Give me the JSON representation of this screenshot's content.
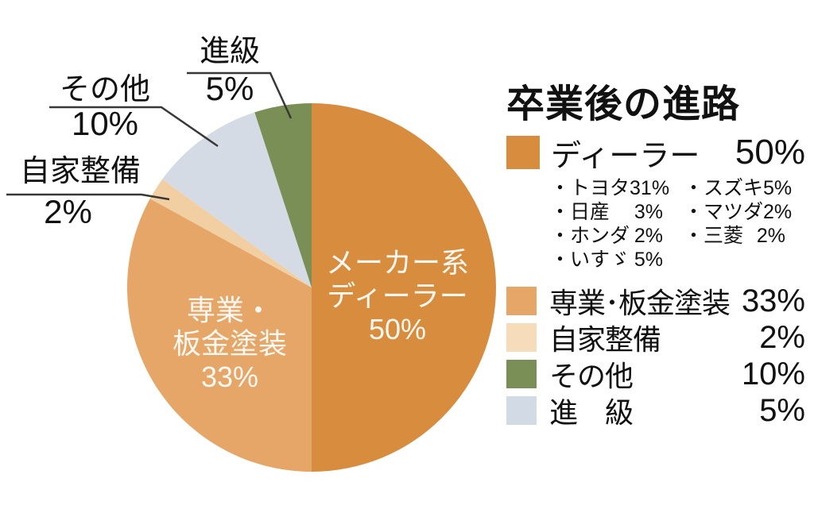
{
  "page_title": "卒業後の進路",
  "chart_data": {
    "type": "pie",
    "title": "卒業後の進路",
    "unit": "%",
    "start_angle": "top",
    "direction": "clockwise",
    "slices": [
      {
        "key": "dealer",
        "name": "メーカー系ディーラー",
        "value": 50,
        "color": "#D88C3E",
        "inside_label": [
          "メーカー系",
          "ディーラー",
          "50%"
        ]
      },
      {
        "key": "senmon",
        "name": "専業･板金塗装",
        "value": 33,
        "color": "#E5A667",
        "inside_label": [
          "専業・",
          "板金塗装",
          "33%"
        ]
      },
      {
        "key": "jika",
        "name": "自家整備",
        "value": 2,
        "color": "#F2CFA2",
        "callout_label": "自家整備",
        "callout_value": "2%"
      },
      {
        "key": "sonota",
        "name": "その他",
        "value": 10,
        "color": "#D4DBE5",
        "callout_label": "その他",
        "callout_value": "10%"
      },
      {
        "key": "shinkyu",
        "name": "進級",
        "value": 5,
        "color": "#7A8F56",
        "callout_label": "進級",
        "callout_value": "5%"
      }
    ],
    "dealer_breakdown": [
      {
        "name": "トヨタ",
        "value": 31
      },
      {
        "name": "日産",
        "value": 3
      },
      {
        "name": "ホンダ",
        "value": 2
      },
      {
        "name": "いすゞ",
        "value": 5
      },
      {
        "name": "スズキ",
        "value": 5
      },
      {
        "name": "マツダ",
        "value": 2
      },
      {
        "name": "三菱",
        "value": 2
      }
    ]
  },
  "legend": {
    "title": "卒業後の進路",
    "rows": [
      {
        "label": "ディーラー",
        "value": "50%",
        "swatch": "#D88C3E"
      },
      {
        "label": "専業･板金塗装",
        "value": "33%",
        "swatch": "#E5A667"
      },
      {
        "label": "自家整備",
        "value": "2%",
        "swatch": "#F6DCBA"
      },
      {
        "label": "その他",
        "value": "10%",
        "swatch": "#7A8F56"
      },
      {
        "label": "進　級",
        "value": "5%",
        "swatch": "#D2DAE5"
      }
    ],
    "breakdown_col1": [
      {
        "label": "・トヨタ",
        "value": "31%"
      },
      {
        "label": "・日産",
        "value": "3%"
      },
      {
        "label": "・ホンダ",
        "value": "2%"
      },
      {
        "label": "・いすゞ",
        "value": "5%"
      }
    ],
    "breakdown_col2": [
      {
        "label": "・スズキ",
        "value": "5%"
      },
      {
        "label": "・マツダ",
        "value": "2%"
      },
      {
        "label": "・三菱",
        "value": "2%"
      }
    ]
  }
}
